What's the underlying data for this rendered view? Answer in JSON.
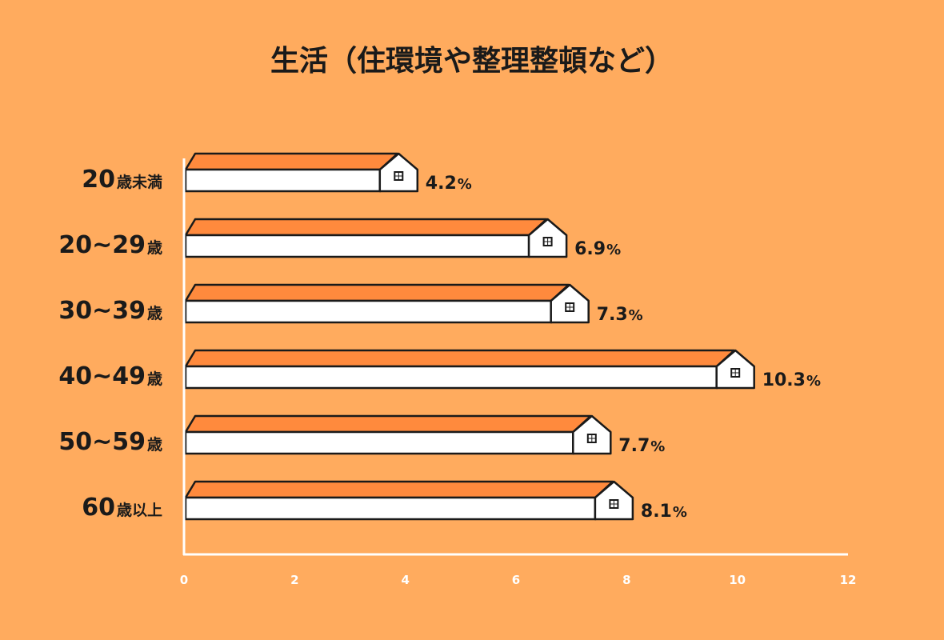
{
  "chart_data": {
    "type": "bar",
    "orientation": "horizontal",
    "title": "生活（住環境や整理整頓など）",
    "categories": [
      {
        "big": "20",
        "small": "歳未満"
      },
      {
        "big": "20~29",
        "small": "歳"
      },
      {
        "big": "30~39",
        "small": "歳"
      },
      {
        "big": "40~49",
        "small": "歳"
      },
      {
        "big": "50~59",
        "small": "歳"
      },
      {
        "big": "60",
        "small": "歳以上"
      }
    ],
    "values": [
      4.2,
      6.9,
      7.3,
      10.3,
      7.7,
      8.1
    ],
    "value_suffix": "%",
    "xlim": [
      0,
      12
    ],
    "xticks": [
      "0",
      "2",
      "4",
      "6",
      "8",
      "10",
      "12"
    ],
    "grid": false,
    "colors": {
      "background": "#FFAB5E",
      "roof": "#FF8A3D",
      "bar_front": "#FFFFFF",
      "outline": "#1a1a1a",
      "axis": "#FFFFFF",
      "text": "#1a1a1a"
    }
  }
}
